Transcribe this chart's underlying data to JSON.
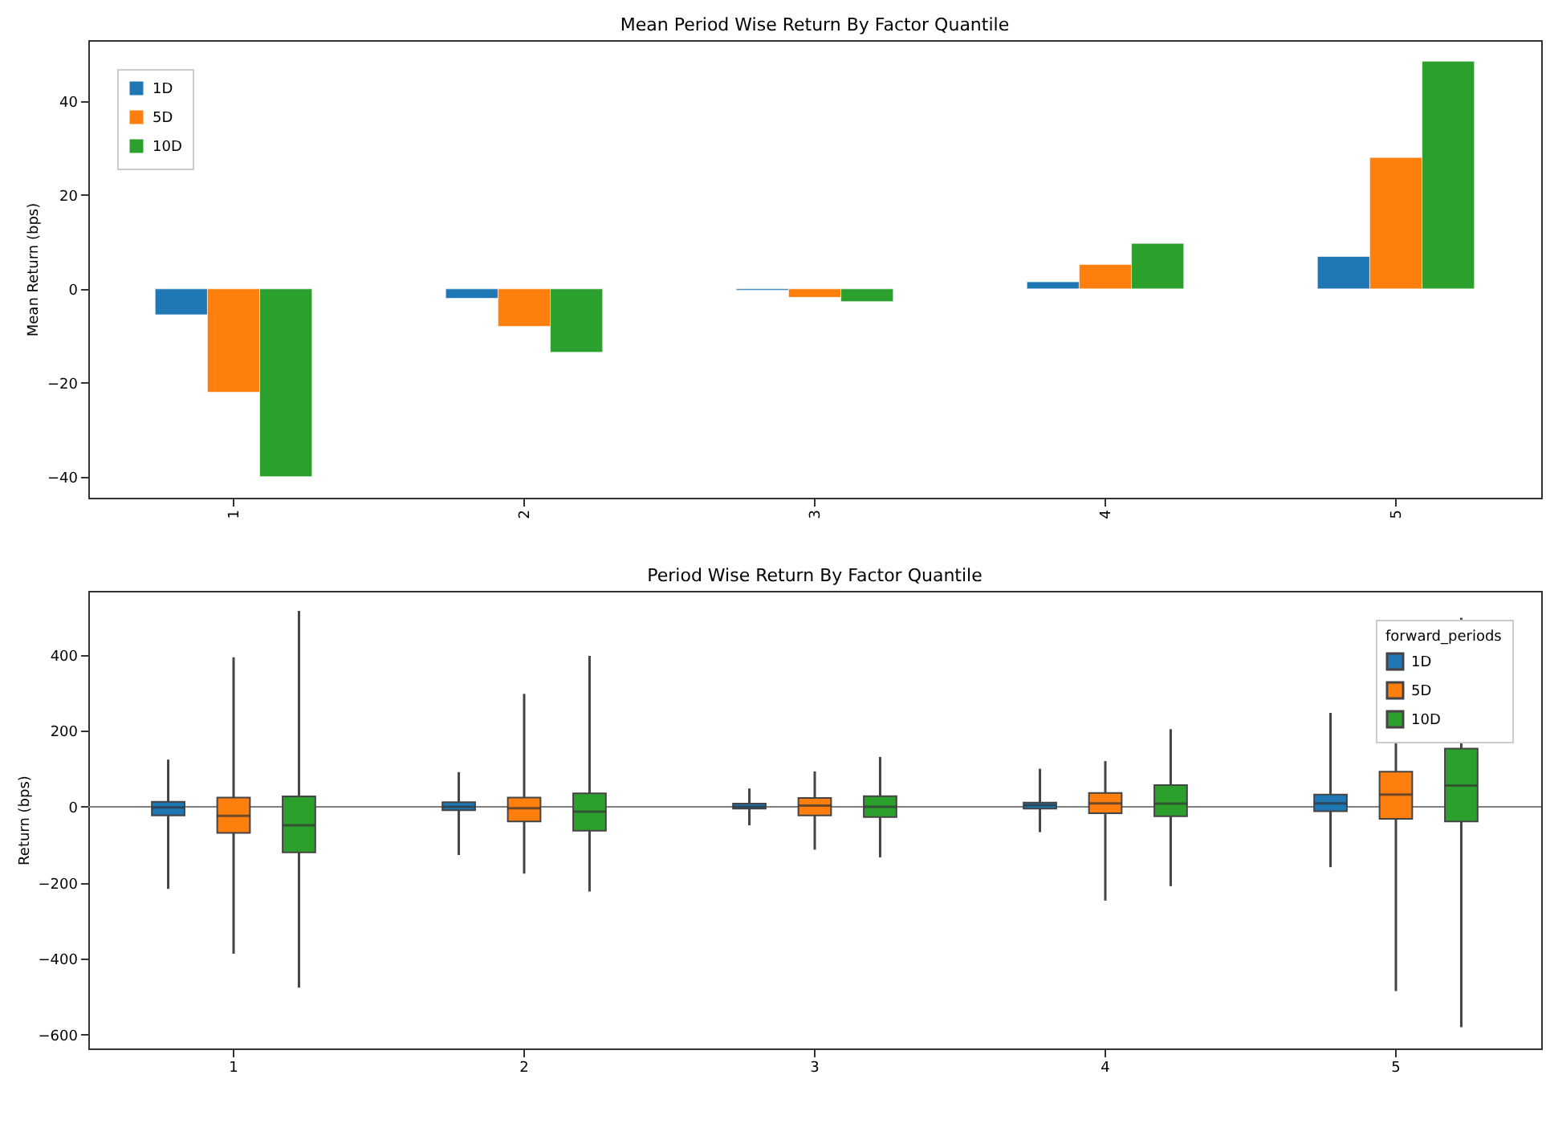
{
  "chart_data": [
    {
      "type": "bar",
      "title": "Mean Period Wise Return By Factor Quantile",
      "ylabel": "Mean Return (bps)",
      "categories": [
        "1",
        "2",
        "3",
        "4",
        "5"
      ],
      "ylim": [
        -44.5,
        53
      ],
      "yticks": [
        -40,
        -20,
        0,
        20,
        40
      ],
      "legend": "top left",
      "series": [
        {
          "name": "1D",
          "color": "#1f77b4",
          "values": [
            -5.5,
            -2,
            -0.3,
            1.5,
            6.9
          ]
        },
        {
          "name": "5D",
          "color": "#ff7f0e",
          "values": [
            -22,
            -8,
            -1.8,
            5.2,
            28
          ]
        },
        {
          "name": "10D",
          "color": "#2ca02c",
          "values": [
            -40,
            -13.5,
            -2.7,
            9.7,
            48.5
          ]
        }
      ]
    },
    {
      "type": "box",
      "title": "Period Wise Return By Factor Quantile",
      "ylabel": "Return (bps)",
      "legend_title": "forward_periods",
      "categories": [
        "1",
        "2",
        "3",
        "4",
        "5"
      ],
      "ylim": [
        -636,
        568
      ],
      "yticks": [
        -600,
        -400,
        -200,
        0,
        200,
        400
      ],
      "legend": "top right",
      "ref_lines": [
        {
          "axis": "y",
          "value": 0,
          "color": "#808080"
        }
      ],
      "series": [
        {
          "name": "1D",
          "color": "#1f77b4",
          "boxes": [
            {
              "low": -216,
              "q1": -23,
              "median": -2,
              "q3": 13,
              "high": 124
            },
            {
              "low": -127,
              "q1": -9,
              "median": 0,
              "q3": 12,
              "high": 91
            },
            {
              "low": -49,
              "q1": -5,
              "median": 0,
              "q3": 8,
              "high": 48
            },
            {
              "low": -67,
              "q1": -5,
              "median": 4,
              "q3": 11,
              "high": 100
            },
            {
              "low": -159,
              "q1": -12,
              "median": 9,
              "q3": 32,
              "high": 247
            }
          ]
        },
        {
          "name": "5D",
          "color": "#ff7f0e",
          "boxes": [
            {
              "low": -387,
              "q1": -69,
              "median": -24,
              "q3": 24,
              "high": 393
            },
            {
              "low": -176,
              "q1": -39,
              "median": -4,
              "q3": 24,
              "high": 297
            },
            {
              "low": -113,
              "q1": -23,
              "median": 3,
              "q3": 23,
              "high": 93
            },
            {
              "low": -247,
              "q1": -17,
              "median": 9,
              "q3": 36,
              "high": 120
            },
            {
              "low": -485,
              "q1": -32,
              "median": 32,
              "q3": 92,
              "high": 384
            }
          ]
        },
        {
          "name": "10D",
          "color": "#2ca02c",
          "boxes": [
            {
              "low": -476,
              "q1": -120,
              "median": -49,
              "q3": 27,
              "high": 515
            },
            {
              "low": -223,
              "q1": -63,
              "median": -13,
              "q3": 35,
              "high": 397
            },
            {
              "low": -133,
              "q1": -27,
              "median": 0,
              "q3": 28,
              "high": 131
            },
            {
              "low": -209,
              "q1": -25,
              "median": 8,
              "q3": 57,
              "high": 204
            },
            {
              "low": -580,
              "q1": -39,
              "median": 56,
              "q3": 153,
              "high": 497
            }
          ]
        }
      ]
    }
  ]
}
